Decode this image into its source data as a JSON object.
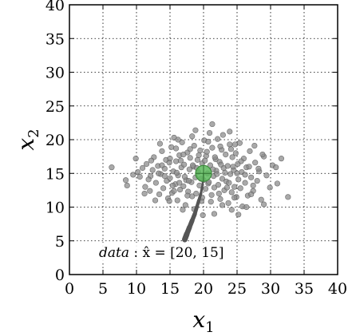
{
  "chart_data": {
    "type": "scatter",
    "title": "",
    "xlabel": "x",
    "xlabel_sub": "1",
    "ylabel": "x",
    "ylabel_sub": "2",
    "xlim": [
      0,
      40
    ],
    "ylim": [
      0,
      40
    ],
    "xticks": [
      0,
      5,
      10,
      15,
      20,
      25,
      30,
      35,
      40
    ],
    "yticks": [
      0,
      5,
      10,
      15,
      20,
      25,
      30,
      35,
      40
    ],
    "grid": true,
    "grid_style": "dotted",
    "annotation": {
      "text_italic": "data",
      "text_rest": " :  x̂ = [20, 15]",
      "location": "bottom-left inside axes"
    },
    "estimate": {
      "x": 20,
      "y": 15,
      "marker_color": "#5cb85c"
    },
    "trajectory": {
      "color": "#555555",
      "points": [
        [
          17.2,
          5.2
        ],
        [
          17.5,
          6.0
        ],
        [
          17.9,
          7.0
        ],
        [
          18.3,
          8.0
        ],
        [
          18.7,
          9.0
        ],
        [
          19.0,
          10.0
        ],
        [
          19.3,
          11.0
        ],
        [
          19.6,
          12.0
        ],
        [
          19.8,
          13.0
        ],
        [
          19.95,
          14.0
        ],
        [
          20.0,
          15.0
        ]
      ]
    },
    "series": [
      {
        "color": "#8c8c8c",
        "points": [
          [
            6.3,
            15.9
          ],
          [
            8.4,
            14.0
          ],
          [
            8.6,
            13.2
          ],
          [
            9.9,
            17.2
          ],
          [
            10.5,
            14.5
          ],
          [
            10.9,
            15.8
          ],
          [
            11.3,
            13.0
          ],
          [
            11.5,
            16.4
          ],
          [
            12.0,
            12.4
          ],
          [
            12.1,
            14.6
          ],
          [
            12.4,
            15.5
          ],
          [
            12.6,
            17.4
          ],
          [
            12.9,
            13.6
          ],
          [
            13.2,
            16.1
          ],
          [
            13.4,
            11.9
          ],
          [
            13.6,
            14.9
          ],
          [
            13.8,
            18.3
          ],
          [
            14.0,
            12.8
          ],
          [
            14.2,
            15.7
          ],
          [
            14.4,
            17.0
          ],
          [
            14.5,
            13.9
          ],
          [
            14.7,
            11.3
          ],
          [
            14.9,
            16.6
          ],
          [
            15.0,
            14.3
          ],
          [
            15.2,
            18.9
          ],
          [
            15.3,
            12.1
          ],
          [
            15.5,
            15.3
          ],
          [
            15.6,
            20.3
          ],
          [
            15.8,
            13.4
          ],
          [
            15.9,
            16.8
          ],
          [
            16.1,
            11.0
          ],
          [
            16.2,
            14.7
          ],
          [
            16.4,
            17.7
          ],
          [
            16.5,
            12.6
          ],
          [
            16.7,
            15.9
          ],
          [
            16.8,
            19.6
          ],
          [
            17.0,
            13.1
          ],
          [
            17.1,
            16.3
          ],
          [
            17.3,
            10.3
          ],
          [
            17.4,
            14.0
          ],
          [
            17.6,
            18.1
          ],
          [
            17.7,
            12.3
          ],
          [
            17.9,
            15.6
          ],
          [
            18.0,
            17.3
          ],
          [
            18.2,
            13.7
          ],
          [
            18.3,
            11.6
          ],
          [
            18.5,
            16.0
          ],
          [
            18.6,
            19.1
          ],
          [
            18.8,
            14.4
          ],
          [
            18.9,
            12.0
          ],
          [
            19.1,
            17.0
          ],
          [
            19.2,
            15.2
          ],
          [
            19.4,
            13.2
          ],
          [
            19.5,
            18.4
          ],
          [
            19.7,
            10.9
          ],
          [
            19.8,
            16.5
          ],
          [
            20.0,
            14.0
          ],
          [
            20.1,
            19.9
          ],
          [
            20.3,
            12.7
          ],
          [
            20.4,
            17.6
          ],
          [
            20.6,
            15.0
          ],
          [
            20.7,
            13.5
          ],
          [
            20.9,
            21.0
          ],
          [
            21.0,
            16.2
          ],
          [
            21.2,
            11.8
          ],
          [
            21.3,
            18.8
          ],
          [
            21.5,
            14.6
          ],
          [
            21.6,
            12.9
          ],
          [
            21.8,
            17.1
          ],
          [
            21.9,
            15.4
          ],
          [
            22.1,
            20.1
          ],
          [
            22.2,
            13.3
          ],
          [
            22.4,
            16.7
          ],
          [
            22.5,
            11.2
          ],
          [
            22.7,
            18.5
          ],
          [
            22.8,
            14.2
          ],
          [
            23.0,
            15.8
          ],
          [
            23.1,
            12.5
          ],
          [
            23.3,
            17.8
          ],
          [
            23.4,
            13.8
          ],
          [
            23.6,
            16.1
          ],
          [
            23.7,
            10.6
          ],
          [
            23.9,
            19.3
          ],
          [
            24.0,
            14.9
          ],
          [
            24.2,
            12.2
          ],
          [
            24.3,
            17.4
          ],
          [
            24.5,
            15.5
          ],
          [
            24.6,
            13.0
          ],
          [
            24.8,
            18.0
          ],
          [
            24.9,
            11.5
          ],
          [
            25.1,
            16.4
          ],
          [
            25.2,
            14.1
          ],
          [
            25.4,
            19.5
          ],
          [
            25.5,
            12.8
          ],
          [
            25.7,
            15.2
          ],
          [
            25.8,
            10.1
          ],
          [
            26.0,
            17.2
          ],
          [
            26.2,
            13.6
          ],
          [
            26.4,
            15.9
          ],
          [
            26.6,
            11.7
          ],
          [
            26.9,
            18.3
          ],
          [
            27.1,
            14.4
          ],
          [
            27.4,
            12.4
          ],
          [
            27.7,
            16.6
          ],
          [
            28.0,
            13.9
          ],
          [
            28.3,
            15.3
          ],
          [
            28.6,
            11.1
          ],
          [
            29.0,
            17.5
          ],
          [
            29.4,
            14.7
          ],
          [
            29.9,
            12.9
          ],
          [
            30.3,
            16.2
          ],
          [
            31.0,
            13.5
          ],
          [
            31.6,
            17.2
          ],
          [
            32.6,
            11.5
          ],
          [
            18.6,
            9.7
          ],
          [
            21.6,
            9.0
          ],
          [
            24.2,
            9.6
          ],
          [
            25.2,
            8.9
          ],
          [
            26.4,
            10.0
          ],
          [
            16.2,
            20.0
          ],
          [
            18.3,
            20.5
          ],
          [
            21.3,
            22.3
          ],
          [
            22.9,
            20.7
          ],
          [
            24.7,
            19.3
          ],
          [
            13.5,
            19.4
          ],
          [
            11.2,
            12.0
          ],
          [
            9.5,
            14.8
          ],
          [
            12.8,
            11.0
          ],
          [
            16.9,
            9.6
          ],
          [
            19.9,
            8.8
          ],
          [
            27.6,
            19.1
          ],
          [
            29.0,
            10.4
          ],
          [
            15.4,
            13.2
          ],
          [
            16.0,
            15.1
          ],
          [
            16.6,
            16.9
          ],
          [
            17.2,
            14.5
          ],
          [
            17.8,
            13.9
          ],
          [
            18.4,
            16.2
          ],
          [
            19.0,
            15.8
          ],
          [
            19.6,
            14.2
          ],
          [
            20.2,
            16.9
          ],
          [
            20.8,
            13.7
          ],
          [
            21.4,
            15.6
          ],
          [
            22.0,
            14.9
          ],
          [
            22.6,
            16.3
          ],
          [
            23.2,
            15.1
          ],
          [
            23.8,
            13.6
          ],
          [
            24.4,
            16.0
          ],
          [
            25.0,
            15.0
          ],
          [
            25.6,
            16.8
          ],
          [
            26.2,
            14.8
          ],
          [
            15.0,
            17.2
          ],
          [
            14.2,
            14.6
          ],
          [
            13.8,
            16.2
          ],
          [
            15.6,
            12.4
          ],
          [
            17.0,
            17.8
          ],
          [
            18.0,
            18.6
          ],
          [
            19.3,
            17.7
          ],
          [
            20.5,
            18.2
          ],
          [
            21.7,
            17.4
          ],
          [
            22.3,
            12.0
          ],
          [
            23.5,
            12.9
          ],
          [
            24.1,
            18.6
          ],
          [
            26.8,
            16.0
          ],
          [
            27.4,
            13.2
          ],
          [
            28.2,
            15.7
          ],
          [
            16.4,
            13.6
          ],
          [
            17.6,
            11.7
          ],
          [
            19.8,
            11.4
          ],
          [
            21.1,
            10.8
          ],
          [
            22.8,
            10.3
          ],
          [
            24.6,
            11.4
          ],
          [
            15.9,
            18.7
          ],
          [
            14.9,
            10.9
          ],
          [
            13.3,
            15.0
          ],
          [
            12.2,
            16.9
          ],
          [
            11.8,
            14.1
          ],
          [
            10.2,
            15.2
          ],
          [
            30.8,
            15.9
          ],
          [
            28.8,
            17.8
          ],
          [
            27.1,
            11.9
          ],
          [
            18.8,
            21.4
          ],
          [
            20.7,
            19.7
          ],
          [
            22.5,
            19.0
          ],
          [
            23.9,
            21.2
          ]
        ]
      }
    ]
  }
}
